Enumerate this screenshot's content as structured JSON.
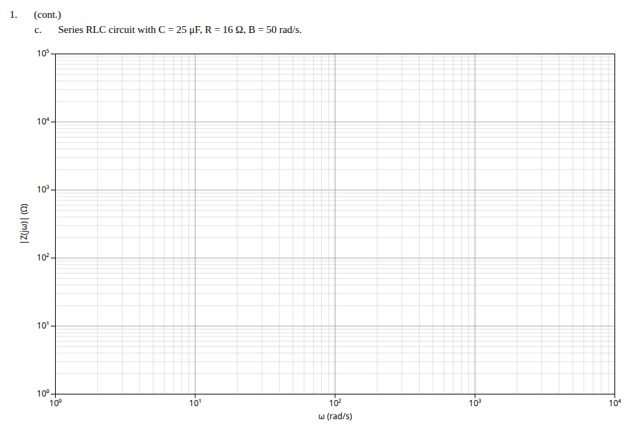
{
  "chart_data": {
    "type": "line",
    "annotations": [
      "1.",
      "(cont.)",
      "c.",
      "Series RLC circuit with C = 25 μF, R = 16 Ω, B = 50 rad/s."
    ],
    "x_label": "ω (rad/s)",
    "y_label": "|Z(jω)| (Ω)",
    "log": true,
    "grid": true,
    "xlim": [
      1,
      10000
    ],
    "ylim": [
      1,
      100000
    ],
    "xticks": [
      {
        "value": 1,
        "label": "10⁰"
      },
      {
        "value": 10,
        "label": "10¹"
      },
      {
        "value": 100,
        "label": "10²"
      },
      {
        "value": 1000,
        "label": "10³"
      },
      {
        "value": 10000,
        "label": "10⁴"
      }
    ],
    "yticks": [
      {
        "value": 1,
        "label": "10⁰"
      },
      {
        "value": 10,
        "label": "10¹"
      },
      {
        "value": 100,
        "label": "10²"
      },
      {
        "value": 1000,
        "label": "10³"
      },
      {
        "value": 10000,
        "label": "10⁴"
      },
      {
        "value": 100000,
        "label": "10⁵"
      }
    ],
    "series": []
  }
}
